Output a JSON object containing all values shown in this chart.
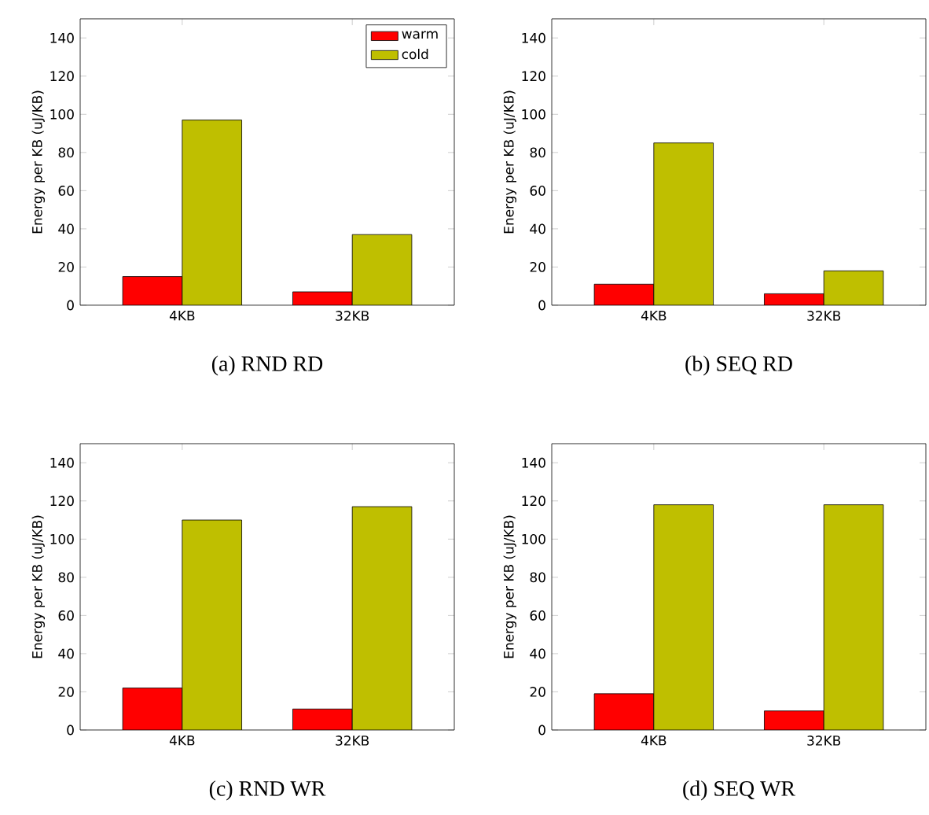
{
  "chart_data": [
    {
      "type": "bar",
      "title": "(a) RND RD",
      "ylabel": "Energy per KB (uJ/KB)",
      "categories": [
        "4KB",
        "32KB"
      ],
      "ylim": [
        0,
        150
      ],
      "yticks": [
        0,
        20,
        40,
        60,
        80,
        100,
        120,
        140
      ],
      "legend": "top right",
      "series": [
        {
          "name": "warm",
          "color": "#ff0000",
          "values": [
            15,
            7
          ]
        },
        {
          "name": "cold",
          "color": "#bfbf00",
          "values": [
            97,
            37
          ]
        }
      ]
    },
    {
      "type": "bar",
      "title": "(b) SEQ RD",
      "ylabel": "Energy per KB (uJ/KB)",
      "categories": [
        "4KB",
        "32KB"
      ],
      "ylim": [
        0,
        150
      ],
      "yticks": [
        0,
        20,
        40,
        60,
        80,
        100,
        120,
        140
      ],
      "series": [
        {
          "color": "#ff0000",
          "values": [
            11,
            6
          ]
        },
        {
          "color": "#bfbf00",
          "values": [
            85,
            18
          ]
        }
      ]
    },
    {
      "type": "bar",
      "title": "(c) RND WR",
      "ylabel": "Energy per KB (uJ/KB)",
      "categories": [
        "4KB",
        "32KB"
      ],
      "ylim": [
        0,
        150
      ],
      "yticks": [
        0,
        20,
        40,
        60,
        80,
        100,
        120,
        140
      ],
      "series": [
        {
          "color": "#ff0000",
          "values": [
            22,
            11
          ]
        },
        {
          "color": "#bfbf00",
          "values": [
            110,
            117
          ]
        }
      ]
    },
    {
      "type": "bar",
      "title": "(d) SEQ WR",
      "ylabel": "Energy per KB (uJ/KB)",
      "categories": [
        "4KB",
        "32KB"
      ],
      "ylim": [
        0,
        150
      ],
      "yticks": [
        0,
        20,
        40,
        60,
        80,
        100,
        120,
        140
      ],
      "series": [
        {
          "color": "#ff0000",
          "values": [
            19,
            10
          ]
        },
        {
          "color": "#bfbf00",
          "values": [
            118,
            118
          ]
        }
      ]
    }
  ]
}
